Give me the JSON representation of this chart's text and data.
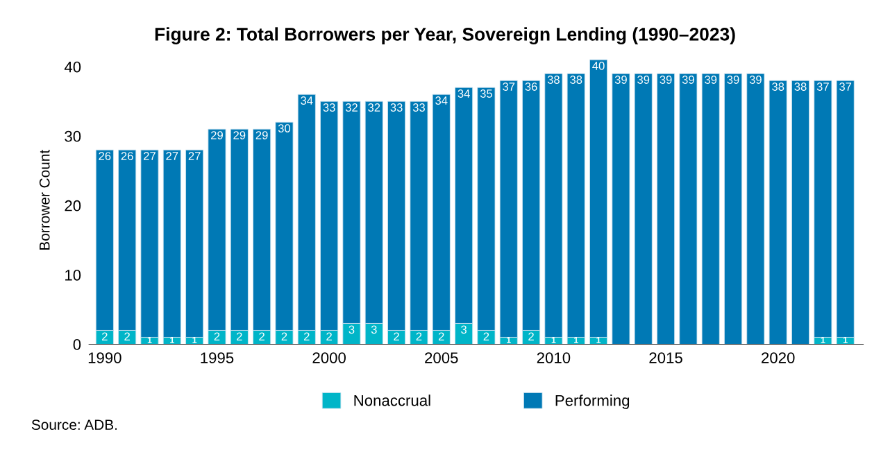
{
  "chart_data": {
    "type": "bar",
    "stacked": true,
    "title": "Figure 2: Total Borrowers per Year, Sovereign Lending (1990–2023)",
    "ylabel": "Borrower Count",
    "x": [
      1990,
      1991,
      1992,
      1993,
      1994,
      1995,
      1996,
      1997,
      1998,
      1999,
      2000,
      2001,
      2002,
      2003,
      2004,
      2005,
      2006,
      2007,
      2008,
      2009,
      2010,
      2011,
      2012,
      2013,
      2014,
      2015,
      2016,
      2017,
      2018,
      2019,
      2020,
      2021,
      2022,
      2023
    ],
    "xlim": [
      1989.3,
      2023.8
    ],
    "xticks": [
      1990,
      1995,
      2000,
      2005,
      2010,
      2015,
      2020
    ],
    "ylim": [
      0,
      41.5
    ],
    "yticks": [
      0,
      10,
      20,
      30,
      40
    ],
    "series": [
      {
        "name": "Nonaccrual",
        "color": "#00b5c8",
        "values": [
          2,
          2,
          1,
          1,
          1,
          2,
          2,
          2,
          2,
          2,
          2,
          3,
          3,
          2,
          2,
          2,
          3,
          2,
          1,
          2,
          1,
          1,
          1,
          0,
          0,
          0,
          0,
          0,
          0,
          0,
          0,
          0,
          1,
          1
        ],
        "value_labels": [
          "2",
          "2",
          "1",
          "1",
          "1",
          "2",
          "2",
          "2",
          "2",
          "2",
          "2",
          "3",
          "3",
          "2",
          "2",
          "2",
          "3",
          "2",
          "1",
          "2",
          "1",
          "1",
          "1",
          null,
          null,
          null,
          null,
          null,
          null,
          null,
          null,
          null,
          "1",
          "1"
        ]
      },
      {
        "name": "Performing",
        "color": "#0079b5",
        "values": [
          26,
          26,
          27,
          27,
          27,
          29,
          29,
          29,
          30,
          34,
          33,
          32,
          32,
          33,
          33,
          34,
          34,
          35,
          37,
          36,
          38,
          38,
          40,
          39,
          39,
          39,
          39,
          39,
          39,
          39,
          38,
          38,
          37,
          37
        ],
        "value_labels": [
          "26",
          "26",
          "27",
          "27",
          "27",
          "29",
          "29",
          "29",
          "30",
          "34",
          "33",
          "32",
          "32",
          "33",
          "33",
          "34",
          "34",
          "35",
          "37",
          "36",
          "38",
          "38",
          "40",
          "39",
          "39",
          "39",
          "39",
          "39",
          "39",
          "39",
          "38",
          "38",
          "37",
          "37"
        ]
      }
    ],
    "legend": "bottom",
    "grid": false,
    "annotations": [
      "Source: ADB."
    ]
  }
}
